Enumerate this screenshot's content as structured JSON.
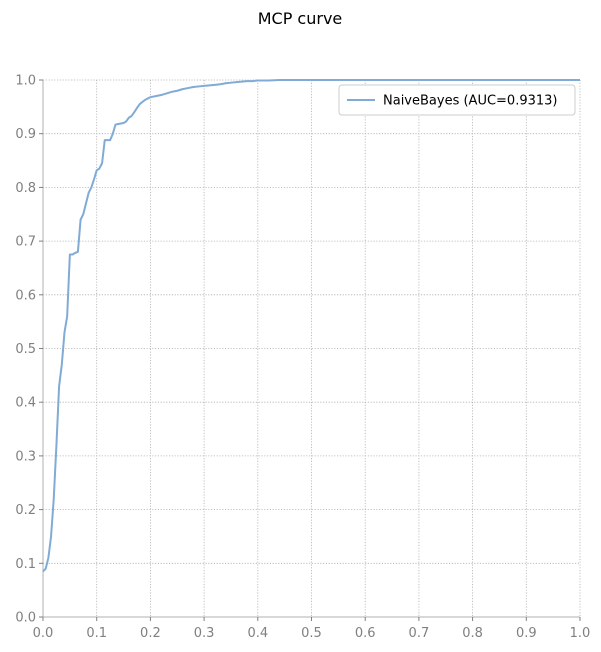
{
  "chart_data": {
    "type": "line",
    "title": "MCP curve",
    "xlabel": "",
    "ylabel": "",
    "xlim": [
      0,
      1
    ],
    "ylim": [
      0,
      1
    ],
    "xticks": [
      "0.0",
      "0.1",
      "0.2",
      "0.3",
      "0.4",
      "0.5",
      "0.6",
      "0.7",
      "0.8",
      "0.9",
      "1.0"
    ],
    "yticks": [
      "0.0",
      "0.1",
      "0.2",
      "0.3",
      "0.4",
      "0.5",
      "0.6",
      "0.7",
      "0.8",
      "0.9",
      "1.0"
    ],
    "grid": true,
    "legend_position": "top-right",
    "series": [
      {
        "name": "NaiveBayes (AUC=0.9313)",
        "color": "#7fabd6",
        "x": [
          0.0,
          0.005,
          0.01,
          0.015,
          0.02,
          0.025,
          0.03,
          0.035,
          0.04,
          0.045,
          0.05,
          0.055,
          0.06,
          0.065,
          0.07,
          0.075,
          0.08,
          0.085,
          0.09,
          0.095,
          0.1,
          0.105,
          0.11,
          0.115,
          0.12,
          0.125,
          0.13,
          0.135,
          0.14,
          0.15,
          0.155,
          0.16,
          0.165,
          0.17,
          0.175,
          0.18,
          0.19,
          0.2,
          0.21,
          0.22,
          0.23,
          0.24,
          0.25,
          0.26,
          0.27,
          0.28,
          0.29,
          0.3,
          0.31,
          0.32,
          0.33,
          0.34,
          0.35,
          0.36,
          0.37,
          0.38,
          0.39,
          0.4,
          0.42,
          0.44,
          0.46,
          0.48,
          0.5,
          0.6,
          0.7,
          0.8,
          0.9,
          1.0
        ],
        "y": [
          0.085,
          0.09,
          0.11,
          0.15,
          0.22,
          0.32,
          0.43,
          0.47,
          0.53,
          0.56,
          0.675,
          0.675,
          0.678,
          0.68,
          0.74,
          0.75,
          0.77,
          0.79,
          0.8,
          0.815,
          0.832,
          0.835,
          0.845,
          0.888,
          0.888,
          0.888,
          0.9,
          0.917,
          0.918,
          0.92,
          0.923,
          0.93,
          0.933,
          0.94,
          0.948,
          0.955,
          0.963,
          0.968,
          0.97,
          0.972,
          0.975,
          0.978,
          0.98,
          0.983,
          0.985,
          0.987,
          0.988,
          0.989,
          0.99,
          0.991,
          0.992,
          0.994,
          0.995,
          0.996,
          0.997,
          0.998,
          0.998,
          0.999,
          0.999,
          1.0,
          1.0,
          1.0,
          1.0,
          1.0,
          1.0,
          1.0,
          1.0,
          1.0
        ]
      }
    ]
  }
}
